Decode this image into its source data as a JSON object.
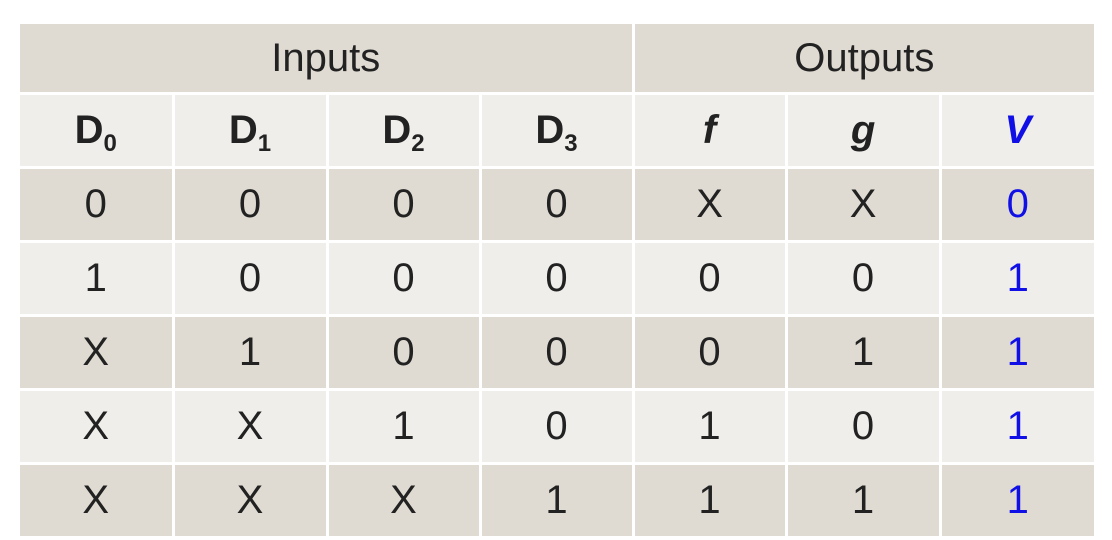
{
  "table": {
    "groups": {
      "inputs": "Inputs",
      "outputs": "Outputs"
    },
    "headers": [
      {
        "base": "D",
        "sub": "0"
      },
      {
        "base": "D",
        "sub": "1"
      },
      {
        "base": "D",
        "sub": "2"
      },
      {
        "base": "D",
        "sub": "3"
      },
      {
        "base": "f",
        "sub": ""
      },
      {
        "base": "g",
        "sub": ""
      },
      {
        "base": "V",
        "sub": ""
      }
    ],
    "rows": [
      [
        "0",
        "0",
        "0",
        "0",
        "X",
        "X",
        "0"
      ],
      [
        "1",
        "0",
        "0",
        "0",
        "0",
        "0",
        "1"
      ],
      [
        "X",
        "1",
        "0",
        "0",
        "0",
        "1",
        "1"
      ],
      [
        "X",
        "X",
        "1",
        "0",
        "1",
        "0",
        "1"
      ],
      [
        "X",
        "X",
        "X",
        "1",
        "1",
        "1",
        "1"
      ]
    ],
    "colors": {
      "dark_row": "#e0dbd2",
      "light_row": "#f0eeeb",
      "highlight_text": "#1010e6",
      "divider": "#333333"
    }
  }
}
